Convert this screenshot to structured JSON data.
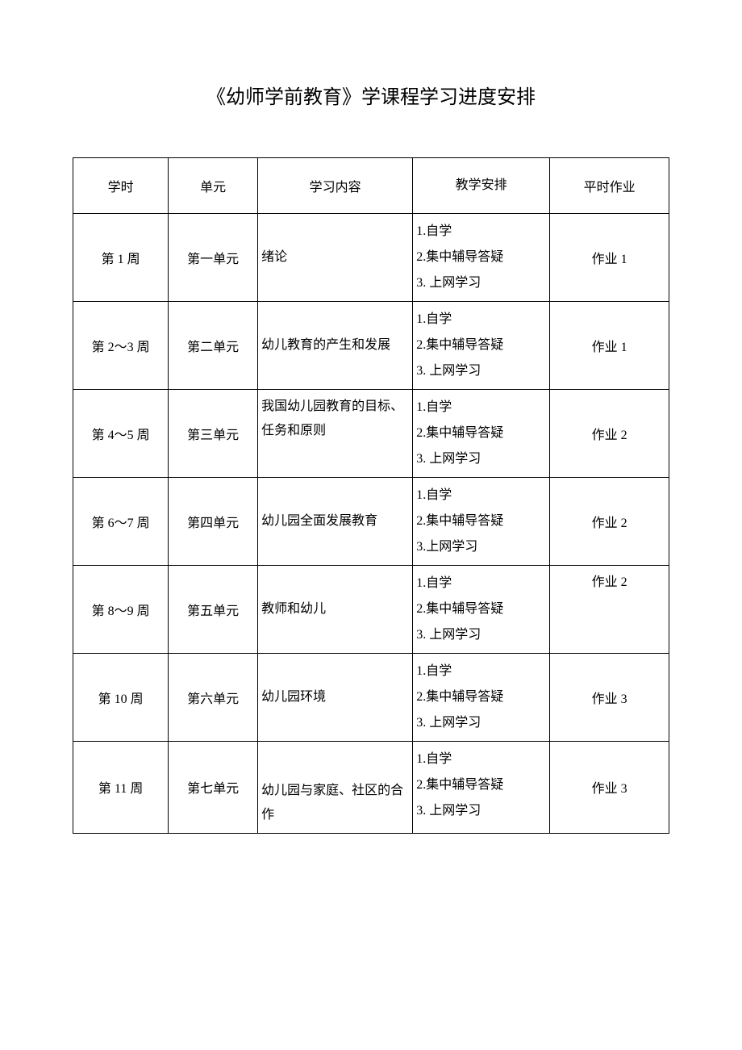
{
  "title": "《幼师学前教育》学课程学习进度安排",
  "table": {
    "columns": [
      "学时",
      "单元",
      "学习内容",
      "教学安排",
      "平时作业"
    ],
    "rows": [
      {
        "time": "第 1 周",
        "unit": "第一单元",
        "content": "绪论",
        "content_pos": "middle",
        "arrange": [
          "1.自学",
          "2.集中辅导答疑",
          "3. 上网学习"
        ],
        "homework": "作业 1",
        "homework_pos": "middle"
      },
      {
        "time": "第 2～3 周",
        "unit": "第二单元",
        "content": "幼儿教育的产生和发展",
        "content_pos": "middle",
        "arrange": [
          "1.自学",
          "2.集中辅导答疑",
          "3. 上网学习"
        ],
        "homework": "作业 1",
        "homework_pos": "middle"
      },
      {
        "time": "第 4～5 周",
        "unit": "第三单元",
        "content": "我国幼儿园教育的目标、任务和原则",
        "content_pos": "top",
        "arrange": [
          "1.自学",
          "2.集中辅导答疑",
          "3. 上网学习"
        ],
        "homework": "作业 2",
        "homework_pos": "middle"
      },
      {
        "time": "第 6～7 周",
        "unit": "第四单元",
        "content": "幼儿园全面发展教育",
        "content_pos": "middle",
        "arrange": [
          "1.自学",
          "2.集中辅导答疑",
          "3.上网学习"
        ],
        "homework": "作业 2",
        "homework_pos": "middle"
      },
      {
        "time": "第 8～9 周",
        "unit": "第五单元",
        "content": "教师和幼儿",
        "content_pos": "middle",
        "arrange": [
          "1.自学",
          "2.集中辅导答疑",
          "3. 上网学习"
        ],
        "homework": "作业 2",
        "homework_pos": "top"
      },
      {
        "time": "第 10 周",
        "unit": "第六单元",
        "content": "幼儿园环境",
        "content_pos": "middle",
        "arrange": [
          "1.自学",
          "2.集中辅导答疑",
          "3. 上网学习"
        ],
        "homework": "作业 3",
        "homework_pos": "middle"
      },
      {
        "time": "第 11 周",
        "unit": "第七单元",
        "content": "幼儿园与家庭、社区的合作",
        "content_pos": "lower",
        "arrange": [
          "1.自学",
          "2.集中辅导答疑",
          "3. 上网学习"
        ],
        "homework": "作业 3",
        "homework_pos": "middle"
      }
    ]
  }
}
